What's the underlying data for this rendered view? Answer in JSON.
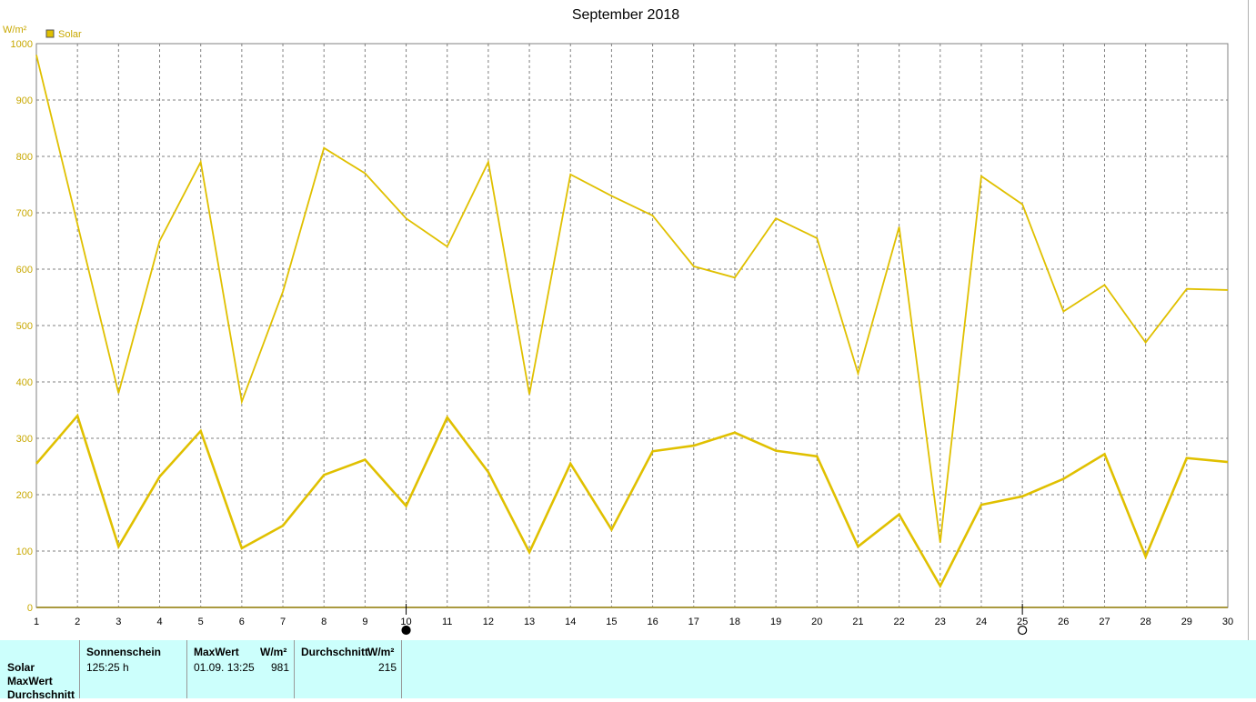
{
  "chart_data": {
    "type": "line",
    "title": "September 2018",
    "ylabel": "W/m²",
    "ylim": [
      0,
      1000
    ],
    "yticks": [
      0,
      100,
      200,
      300,
      400,
      500,
      600,
      700,
      800,
      900,
      1000
    ],
    "x": [
      1,
      2,
      3,
      4,
      5,
      6,
      7,
      8,
      9,
      10,
      11,
      12,
      13,
      14,
      15,
      16,
      17,
      18,
      19,
      20,
      21,
      22,
      23,
      24,
      25,
      26,
      27,
      28,
      29,
      30
    ],
    "xlim": [
      1,
      30
    ],
    "grid": true,
    "legend": "top-left",
    "legend_label": "Solar",
    "color": "#e0c000",
    "series": [
      {
        "values": [
          980,
          680,
          380,
          650,
          790,
          365,
          560,
          815,
          770,
          690,
          640,
          790,
          378,
          768,
          730,
          695,
          605,
          585,
          690,
          655,
          415,
          675,
          115,
          765,
          715,
          525,
          572,
          470,
          565,
          563
        ]
      },
      {
        "values": [
          255,
          340,
          108,
          232,
          313,
          105,
          145,
          235,
          262,
          180,
          337,
          240,
          98,
          255,
          138,
          277,
          287,
          310,
          278,
          268,
          108,
          165,
          38,
          182,
          197,
          228,
          272,
          90,
          265,
          258
        ]
      }
    ],
    "moon_markers": [
      {
        "x": 10,
        "phase": "new"
      },
      {
        "x": 25,
        "phase": "full"
      }
    ]
  },
  "stats": {
    "row_labels": [
      "Solar",
      "MaxWert",
      "Durchschnitt"
    ],
    "sunshine": {
      "header": "Sonnenschein",
      "value": "125:25 h"
    },
    "max": {
      "header": "MaxWert",
      "unit": "W/m²",
      "time": "01.09.  13:25",
      "value": "981"
    },
    "avg": {
      "header": "Durchschnitt",
      "unit": "W/m²",
      "value": "215"
    }
  }
}
